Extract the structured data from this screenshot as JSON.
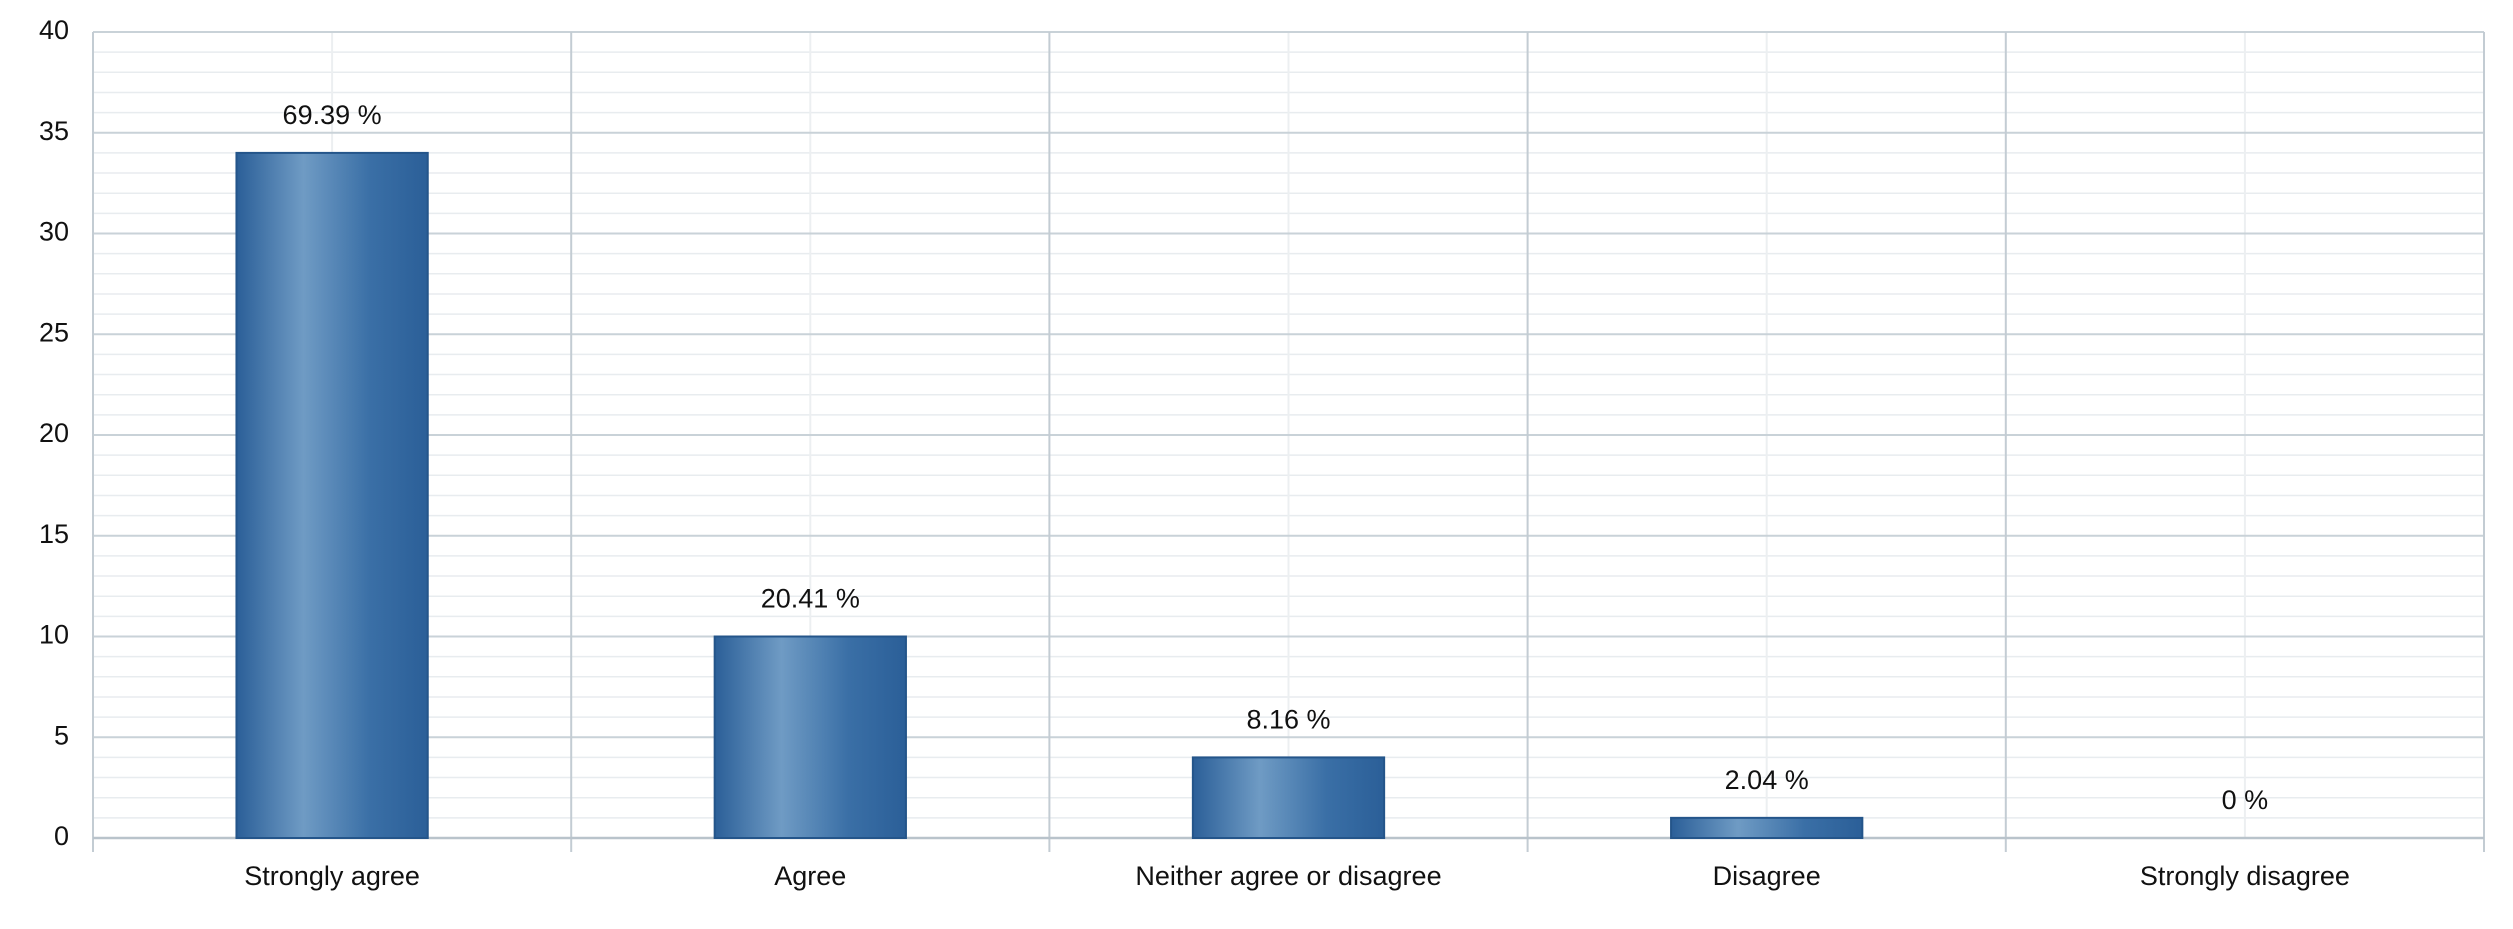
{
  "chart_data": {
    "type": "bar",
    "categories": [
      "Strongly agree",
      "Agree",
      "Neither agree or disagree",
      "Disagree",
      "Strongly disagree"
    ],
    "values": [
      34,
      10,
      4,
      1,
      0
    ],
    "percent_labels": [
      "69.39 %",
      "20.41 %",
      "8.16 %",
      "2.04 %",
      "0 %"
    ],
    "color": "#2f649b",
    "ylim": [
      0,
      40
    ],
    "yticks": [
      0,
      5,
      10,
      15,
      20,
      25,
      30,
      35,
      40
    ],
    "yminorticks": [
      1,
      2,
      3,
      4,
      6,
      7,
      8,
      9,
      11,
      12,
      13,
      14,
      16,
      17,
      18,
      19,
      21,
      22,
      23,
      24,
      26,
      27,
      28,
      29,
      31,
      32,
      33,
      34,
      36,
      37,
      38,
      39
    ],
    "grid": true
  }
}
